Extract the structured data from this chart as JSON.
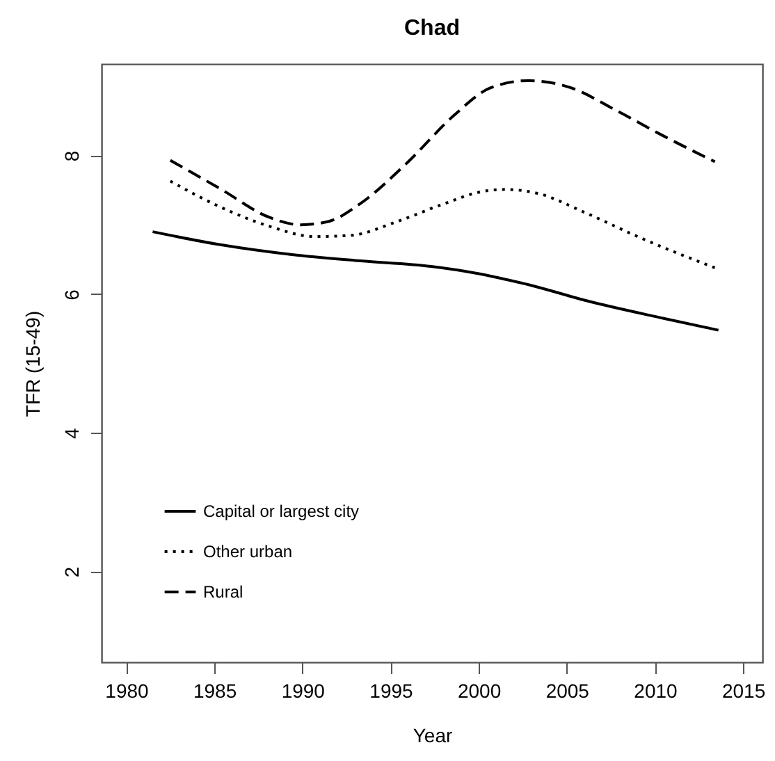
{
  "chart_data": {
    "type": "line",
    "title": "Chad",
    "xlabel": "Year",
    "ylabel": "TFR (15-49)",
    "xlim": [
      1978.6,
      2016.1
    ],
    "ylim": [
      0.69,
      9.32
    ],
    "xticks": [
      1980,
      1985,
      1990,
      1995,
      2000,
      2005,
      2010,
      2015
    ],
    "yticks": [
      2,
      4,
      6,
      8
    ],
    "grid": false,
    "legend": "bottom left",
    "marker": "none",
    "series": [
      {
        "name": "Capital or largest city",
        "color": "#000000",
        "line_style": "solid",
        "x": [
          1981.5,
          1985.4,
          1989.4,
          1993.3,
          1997.3,
          1999.9,
          2002.6,
          2006.5,
          2010.5,
          2013.6
        ],
        "values": [
          6.9,
          6.71,
          6.57,
          6.48,
          6.4,
          6.3,
          6.15,
          5.88,
          5.65,
          5.48
        ]
      },
      {
        "name": "Other urban",
        "color": "#000000",
        "line_style": "dotted",
        "x": [
          1982.5,
          1985.4,
          1988.1,
          1990.7,
          1992.8,
          1995.4,
          1998.1,
          2000.2,
          2001.5,
          2003.4,
          2006.0,
          2009.2,
          2013.4
        ],
        "values": [
          7.63,
          7.25,
          6.98,
          6.83,
          6.85,
          7.05,
          7.31,
          7.48,
          7.51,
          7.45,
          7.18,
          6.81,
          6.38
        ]
      },
      {
        "name": "Rural",
        "color": "#000000",
        "line_style": "dashed",
        "x": [
          1982.5,
          1985.4,
          1988.1,
          1989.9,
          1991.5,
          1993.3,
          1996.0,
          1998.6,
          2000.7,
          2002.8,
          2005.2,
          2007.8,
          2010.5,
          2013.4
        ],
        "values": [
          7.93,
          7.51,
          7.11,
          7.0,
          7.05,
          7.31,
          7.91,
          8.58,
          8.98,
          9.08,
          8.98,
          8.65,
          8.28,
          7.91
        ]
      }
    ]
  }
}
